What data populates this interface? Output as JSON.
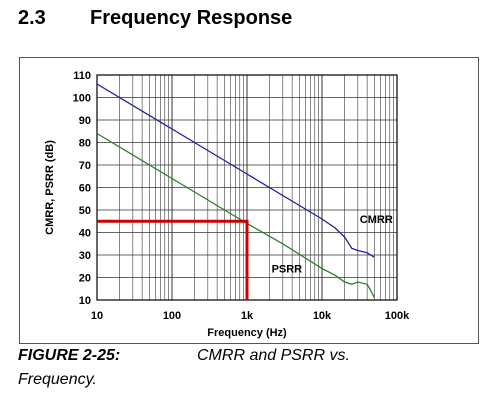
{
  "section": {
    "number": "2.3",
    "title": "Frequency Response"
  },
  "figure": {
    "label": "FIGURE 2-25:",
    "caption": "CMRR and PSRR vs.",
    "caption_cont": "Frequency."
  },
  "chart_data": {
    "type": "line",
    "title": "",
    "xlabel": "Frequency (Hz)",
    "ylabel": "CMRR, PSRR (dB)",
    "x_scale": "log",
    "xlim": [
      10,
      100000
    ],
    "ylim": [
      10,
      110
    ],
    "grid": true,
    "x_ticks": [
      10,
      100,
      1000,
      10000,
      100000
    ],
    "x_tick_labels": [
      "10",
      "100",
      "1k",
      "10k",
      "100k"
    ],
    "y_ticks": [
      10,
      20,
      30,
      40,
      50,
      60,
      70,
      80,
      90,
      100,
      110
    ],
    "y_tick_labels": [
      "10",
      "20",
      "30",
      "40",
      "50",
      "60",
      "70",
      "80",
      "90",
      "100",
      "110"
    ],
    "series": [
      {
        "name": "CMRR",
        "color": "#1f1fa0",
        "x": [
          10,
          100,
          1000,
          5000,
          10000,
          15000,
          20000,
          25000,
          30000,
          40000,
          50000
        ],
        "y": [
          106,
          86,
          66,
          52,
          46,
          42,
          38,
          33,
          32,
          31,
          29
        ]
      },
      {
        "name": "PSRR",
        "color": "#2e7d2e",
        "x": [
          10,
          100,
          1000,
          3000,
          10000,
          15000,
          20000,
          25000,
          30000,
          40000,
          45000,
          50000
        ],
        "y": [
          84,
          64,
          44,
          35,
          24,
          21,
          18,
          17,
          18,
          17,
          14,
          11
        ]
      }
    ],
    "annotations": [
      {
        "text": "CMRR",
        "x": 30000,
        "y": 46
      },
      {
        "text": "PSRR",
        "x": 2000,
        "y": 24
      }
    ],
    "highlight": {
      "color": "#cc0000",
      "x": 1000,
      "y": 45
    }
  }
}
